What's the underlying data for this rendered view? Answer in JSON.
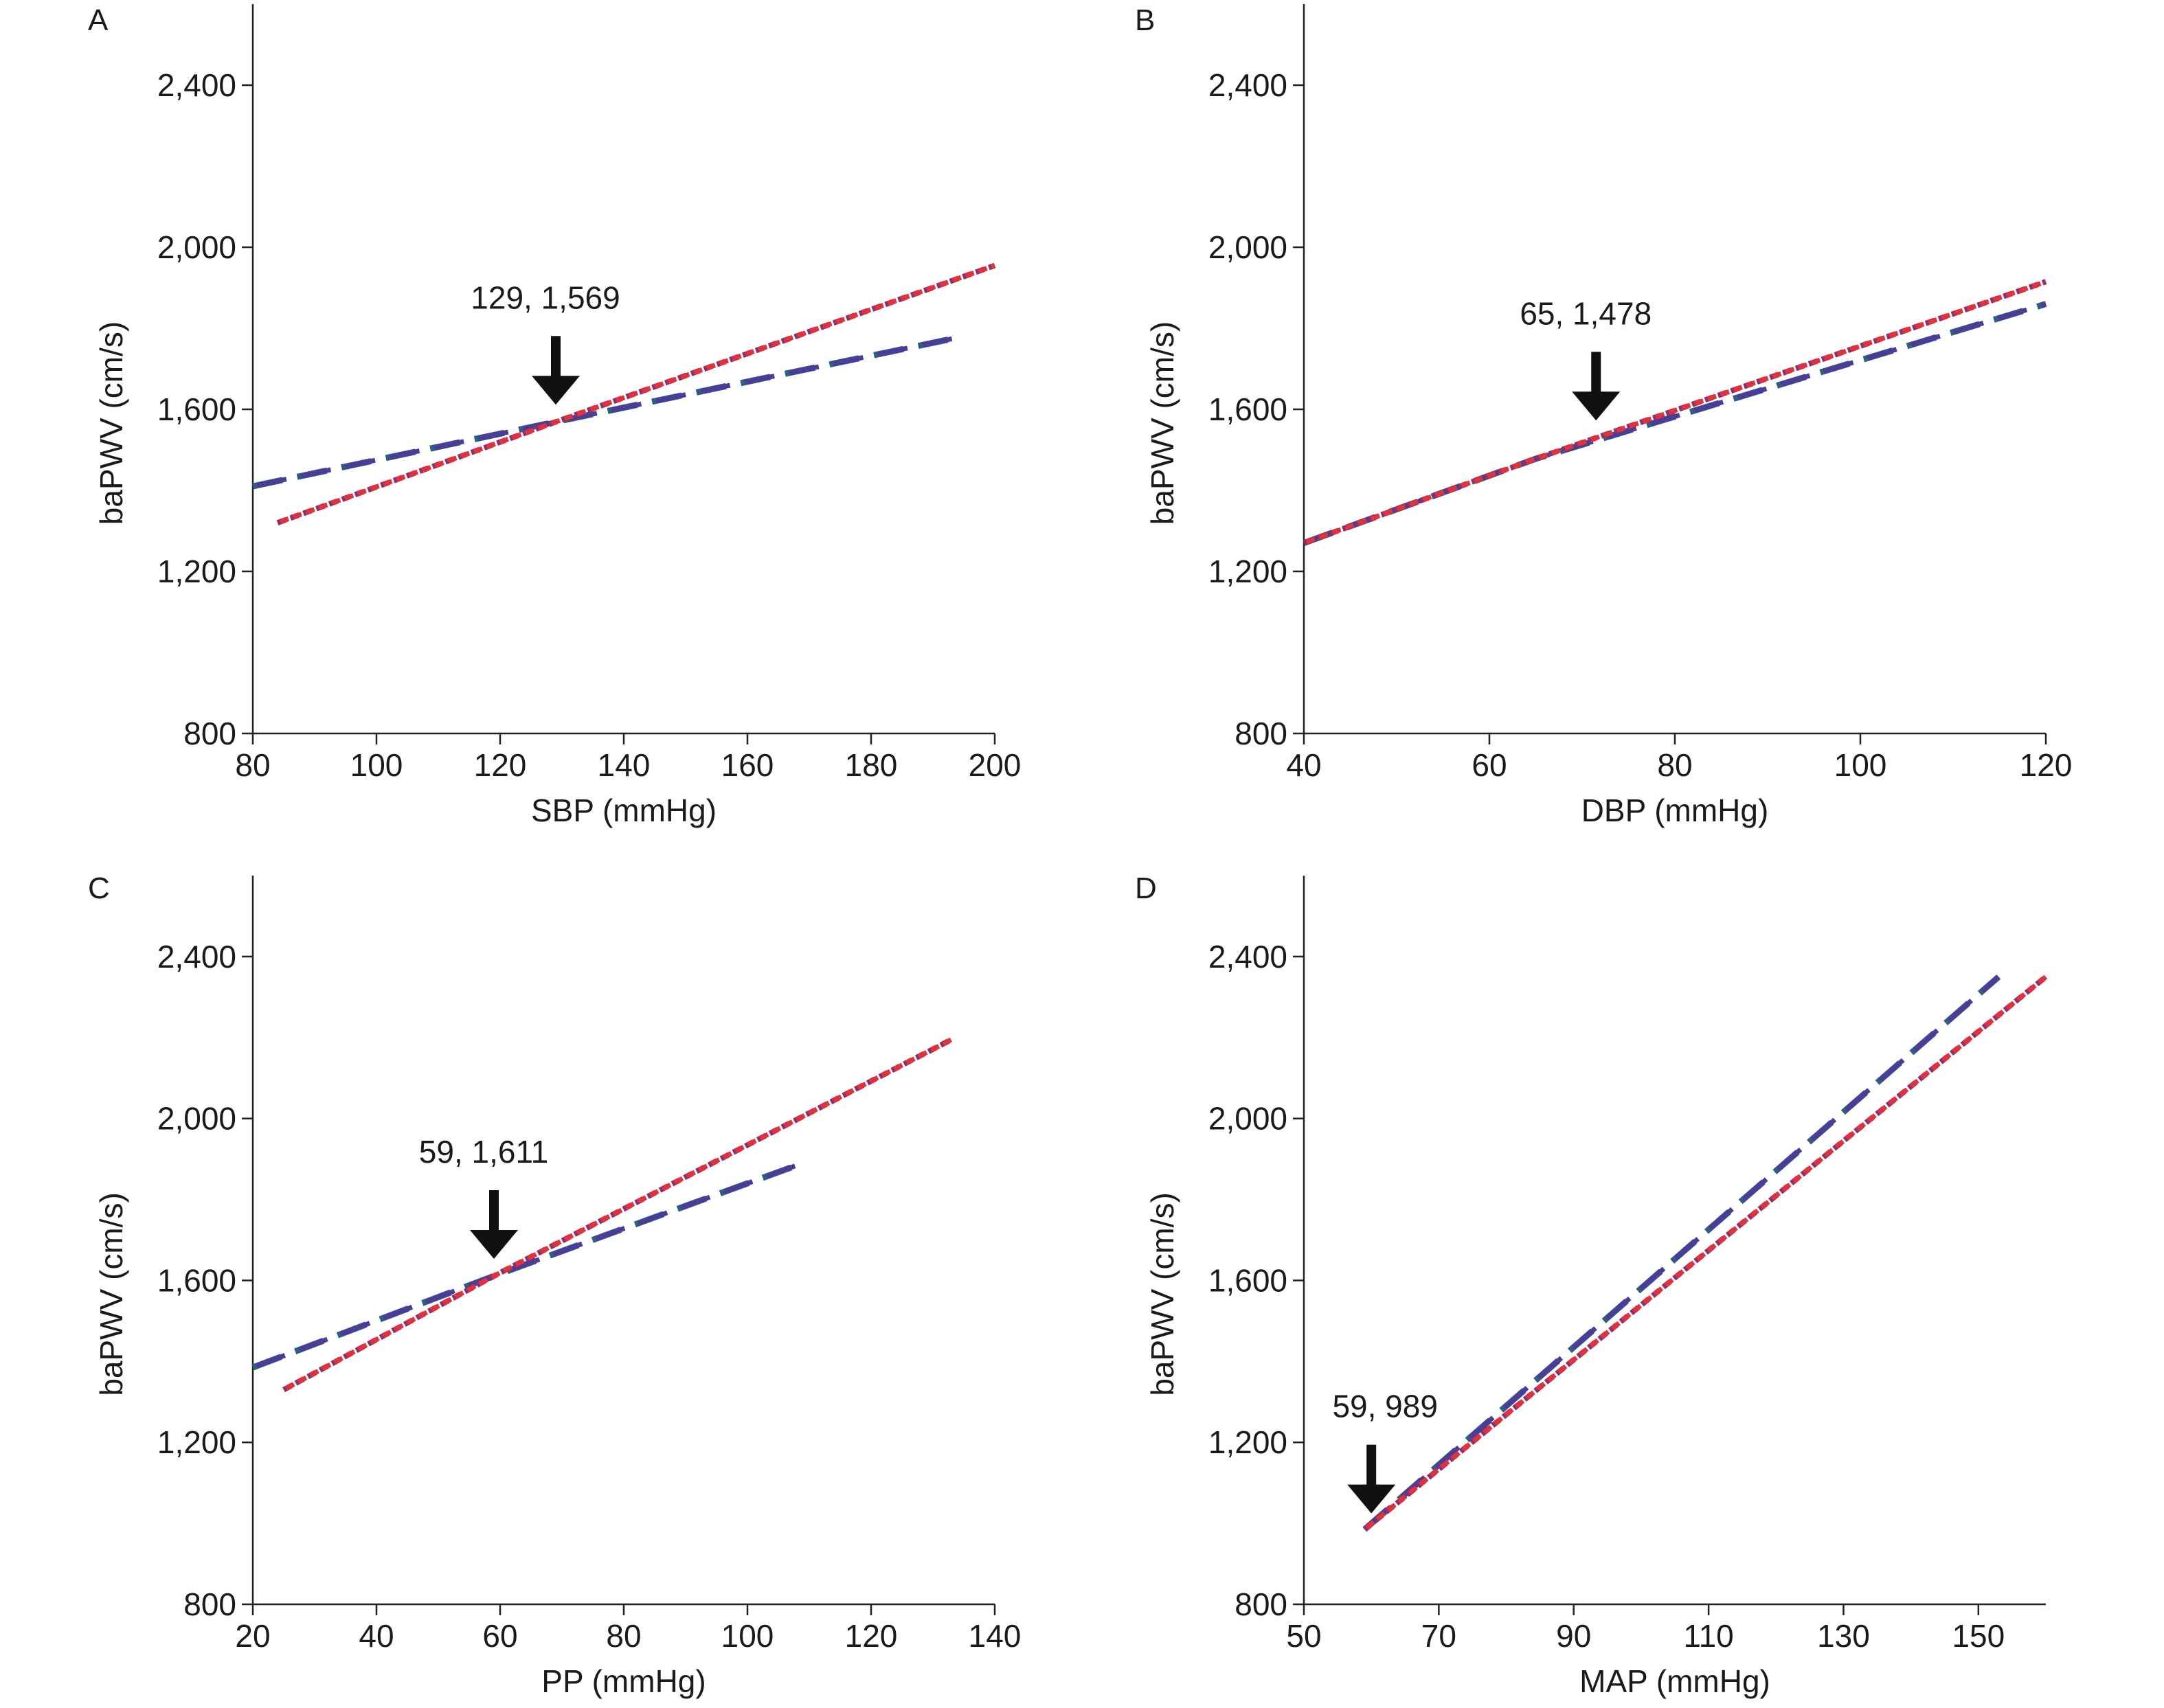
{
  "colors": {
    "series_long_dash": "#4b3c9a",
    "series_long_dash_alt": "#2f5f80",
    "series_short_dash": "#e0313c",
    "series_short_dash_alt": "#8b2f70",
    "arrow": "#111111",
    "axis": "#222222"
  },
  "chart_data": [
    {
      "panel": "A",
      "type": "line",
      "xlabel": "SBP (mmHg)",
      "ylabel": "baPWV (cm/s)",
      "xlim": [
        80,
        200
      ],
      "ylim": [
        800,
        2600
      ],
      "xticks": [
        80,
        100,
        120,
        140,
        160,
        180,
        200
      ],
      "yticks": [
        800,
        1200,
        1600,
        2000,
        2400
      ],
      "xtick_labels": [
        "80",
        "100",
        "120",
        "140",
        "160",
        "180",
        "200"
      ],
      "ytick_labels": [
        "800",
        "1,200",
        "1,600",
        "2,000",
        "2,400"
      ],
      "series": [
        {
          "style": "long-dash",
          "x": [
            80,
            129,
            194
          ],
          "y": [
            1410,
            1569,
            1777
          ]
        },
        {
          "style": "short-dash",
          "x": [
            84,
            129,
            200
          ],
          "y": [
            1320,
            1569,
            1955
          ]
        }
      ],
      "annotation": {
        "label": "129, 1,569",
        "x": 129,
        "y": 1569
      }
    },
    {
      "panel": "B",
      "type": "line",
      "xlabel": "DBP (mmHg)",
      "ylabel": "baPWV (cm/s)",
      "xlim": [
        40,
        120
      ],
      "ylim": [
        800,
        2600
      ],
      "xticks": [
        40,
        60,
        80,
        100,
        120
      ],
      "yticks": [
        800,
        1200,
        1600,
        2000,
        2400
      ],
      "xtick_labels": [
        "40",
        "60",
        "80",
        "100",
        "120"
      ],
      "ytick_labels": [
        "800",
        "1,200",
        "1,600",
        "2,000",
        "2,400"
      ],
      "series": [
        {
          "style": "long-dash",
          "x": [
            40,
            65,
            120
          ],
          "y": [
            1270,
            1478,
            1860
          ]
        },
        {
          "style": "short-dash",
          "x": [
            40,
            65,
            120
          ],
          "y": [
            1270,
            1478,
            1915
          ]
        }
      ],
      "annotation": {
        "label": "65, 1,478",
        "x": 65,
        "y": 1478,
        "arrow_x": 71.5,
        "arrow_y": 1530
      }
    },
    {
      "panel": "C",
      "type": "line",
      "xlabel": "PP (mmHg)",
      "ylabel": "baPWV (cm/s)",
      "xlim": [
        20,
        140
      ],
      "ylim": [
        800,
        2600
      ],
      "xticks": [
        20,
        40,
        60,
        80,
        100,
        120,
        140
      ],
      "yticks": [
        800,
        1200,
        1600,
        2000,
        2400
      ],
      "xtick_labels": [
        "20",
        "40",
        "60",
        "80",
        "100",
        "120",
        "140"
      ],
      "ytick_labels": [
        "800",
        "1,200",
        "1,600",
        "2,000",
        "2,400"
      ],
      "series": [
        {
          "style": "long-dash",
          "x": [
            20,
            59,
            109
          ],
          "y": [
            1385,
            1611,
            1890
          ]
        },
        {
          "style": "short-dash",
          "x": [
            25,
            59,
            133
          ],
          "y": [
            1330,
            1611,
            2195
          ]
        }
      ],
      "annotation": {
        "label": "59, 1,611",
        "x": 59,
        "y": 1611
      }
    },
    {
      "panel": "D",
      "type": "line",
      "xlabel": "MAP (mmHg)",
      "ylabel": "baPWV (cm/s)",
      "xlim": [
        50,
        160
      ],
      "ylim": [
        800,
        2600
      ],
      "xticks": [
        50,
        70,
        90,
        110,
        130,
        150
      ],
      "yticks": [
        800,
        1200,
        1600,
        2000,
        2400
      ],
      "xtick_labels": [
        "50",
        "70",
        "90",
        "110",
        "130",
        "150"
      ],
      "ytick_labels": [
        "800",
        "1,200",
        "1,600",
        "2,000",
        "2,400"
      ],
      "series": [
        {
          "style": "long-dash",
          "x": [
            59,
            153
          ],
          "y": [
            985,
            2350
          ]
        },
        {
          "style": "short-dash",
          "x": [
            59,
            160
          ],
          "y": [
            985,
            2350
          ]
        }
      ],
      "annotation": {
        "label": "59, 989",
        "x": 59,
        "y": 989,
        "arrow_x": 60,
        "arrow_y": 1050
      }
    }
  ]
}
